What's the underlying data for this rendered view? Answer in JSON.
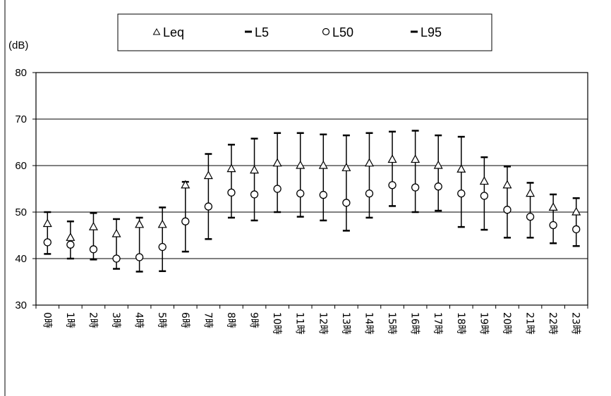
{
  "chart_data": {
    "type": "scatter",
    "unit_label": "(dB)",
    "ylim": [
      30,
      80
    ],
    "yticks": [
      "80",
      "70",
      "60",
      "50",
      "40",
      "30"
    ],
    "grid": true,
    "legend_position": "top",
    "categories": [
      "0時",
      "1時",
      "2時",
      "3時",
      "4時",
      "5時",
      "6時",
      "7時",
      "8時",
      "9時",
      "10時",
      "11時",
      "12時",
      "13時",
      "14時",
      "15時",
      "16時",
      "17時",
      "18時",
      "19時",
      "20時",
      "21時",
      "22時",
      "23時"
    ],
    "series": [
      {
        "name": "Leq",
        "marker": "triangle",
        "values": [
          47.5,
          44.5,
          46.8,
          45.3,
          47.3,
          47.3,
          55.8,
          57.8,
          59.3,
          59.0,
          60.5,
          60.0,
          60.0,
          59.5,
          60.5,
          61.3,
          61.3,
          60.0,
          59.2,
          56.6,
          55.8,
          54.0,
          51.0,
          50.0
        ]
      },
      {
        "name": "L5",
        "marker": "dash",
        "values": [
          50.0,
          48.0,
          49.8,
          48.5,
          48.8,
          51.0,
          56.5,
          62.5,
          64.5,
          65.8,
          67.0,
          67.0,
          66.7,
          66.5,
          67.0,
          67.3,
          67.5,
          66.5,
          66.2,
          61.8,
          59.8,
          56.3,
          53.8,
          53.0
        ]
      },
      {
        "name": "L50",
        "marker": "circle",
        "values": [
          43.5,
          43.0,
          42.0,
          40.0,
          40.3,
          42.5,
          48.0,
          51.2,
          54.2,
          53.8,
          55.0,
          54.0,
          53.7,
          52.0,
          54.0,
          55.8,
          55.3,
          55.5,
          54.0,
          53.5,
          50.5,
          49.0,
          47.2,
          46.3
        ]
      },
      {
        "name": "L95",
        "marker": "dash",
        "values": [
          41.0,
          40.0,
          39.8,
          37.8,
          37.2,
          37.3,
          41.5,
          44.2,
          48.8,
          48.2,
          50.0,
          49.0,
          48.2,
          46.0,
          48.8,
          51.3,
          50.0,
          50.3,
          46.8,
          46.2,
          44.5,
          44.5,
          43.3,
          42.7
        ]
      }
    ],
    "colors": {
      "line": "#000000",
      "marker_fill": "#ffffff",
      "background": "#ffffff"
    }
  }
}
